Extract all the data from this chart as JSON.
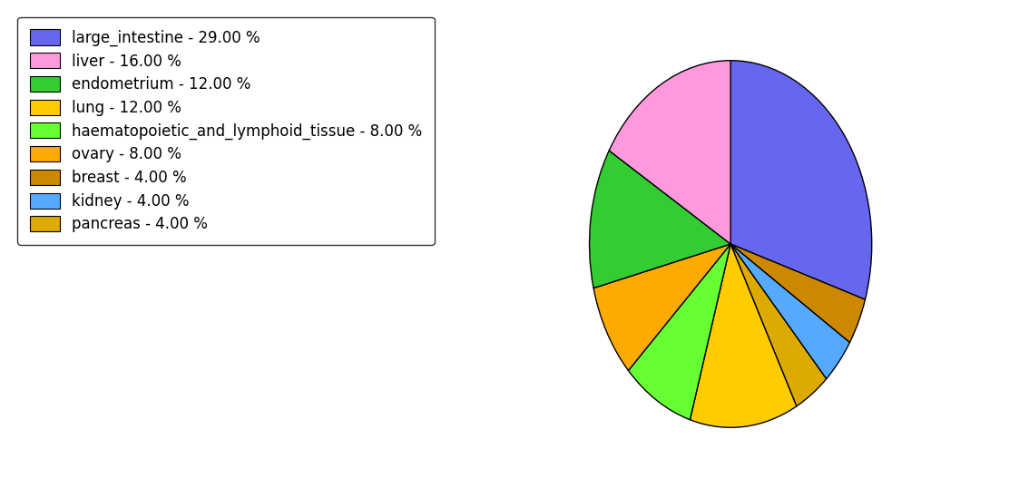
{
  "labels": [
    "large_intestine - 29.00 %",
    "liver - 16.00 %",
    "endometrium - 12.00 %",
    "lung - 12.00 %",
    "haematopoietic_and_lymphoid_tissue - 8.00 %",
    "ovary - 8.00 %",
    "breast - 4.00 %",
    "kidney - 4.00 %",
    "pancreas - 4.00 %"
  ],
  "values": [
    29,
    16,
    12,
    12,
    8,
    8,
    4,
    4,
    4
  ],
  "colors": [
    "#6666EE",
    "#FF99DD",
    "#33CC33",
    "#FFCC00",
    "#66FF33",
    "#FFAA00",
    "#CC8800",
    "#55AAFF",
    "#DDAA00"
  ],
  "startangle": 90,
  "figsize": [
    11.34,
    5.38
  ],
  "dpi": 100
}
